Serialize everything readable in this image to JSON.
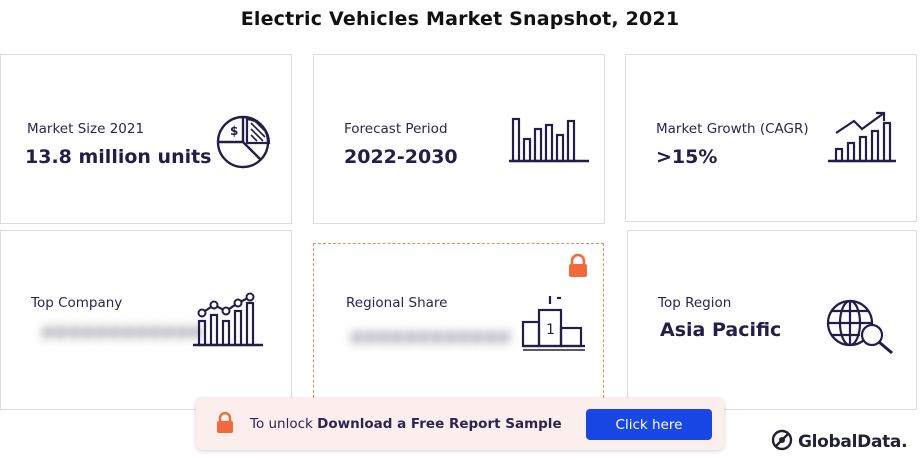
{
  "title": "Electric Vehicles Market Snapshot, 2021",
  "cards": {
    "market_size": {
      "label": "Market Size 2021",
      "value": "13.8 million units",
      "icon": "pie-chart-dollar-icon"
    },
    "forecast_period": {
      "label": "Forecast Period",
      "value": "2022-2030",
      "icon": "bar-chart-icon"
    },
    "market_growth": {
      "label": "Market Growth (CAGR)",
      "value": ">15%",
      "icon": "growth-chart-arrow-icon"
    },
    "top_company": {
      "label": "Top Company",
      "value_hidden": "############",
      "icon": "line-bar-chart-icon"
    },
    "regional_share": {
      "label": "Regional Share",
      "value_hidden": "############",
      "icon": "podium-icon",
      "locked": true
    },
    "top_region": {
      "label": "Top Region",
      "value": "Asia Pacific",
      "icon": "globe-search-icon"
    }
  },
  "unlock_bar": {
    "prefix": "To unlock ",
    "bold_text": "Download a Free Report Sample",
    "button_label": "Click here",
    "icon": "lock-icon"
  },
  "brand": {
    "name": "GlobalData."
  },
  "colors": {
    "ink": "#231d47",
    "accent_orange": "#f06a3c",
    "button_blue": "#1947e6",
    "unlock_bg": "#fbeeed"
  }
}
